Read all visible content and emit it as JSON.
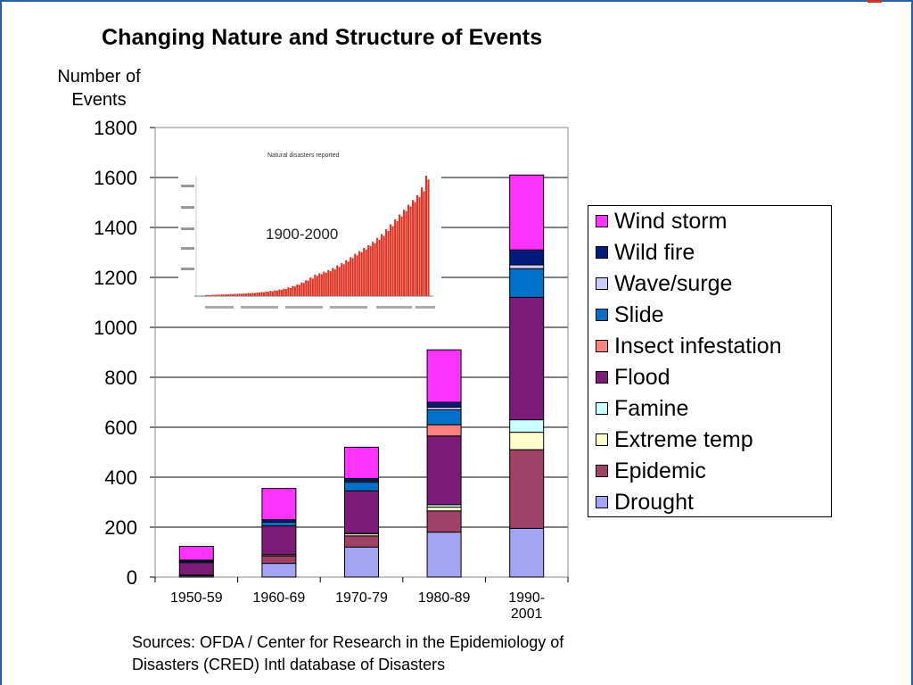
{
  "title": "Changing Nature and Structure of Events",
  "y_axis_label": [
    "Number of",
    "Events"
  ],
  "sources": [
    "Sources: OFDA / Center for Research in the Epidemiology of",
    "Disasters (CRED) Intl database of Disasters"
  ],
  "inset": {
    "title": "Natural disasters reported",
    "period_label": "1900-2000",
    "trend": [
      5,
      6,
      5,
      7,
      6,
      8,
      7,
      9,
      8,
      10,
      9,
      11,
      10,
      12,
      11,
      13,
      12,
      14,
      13,
      16,
      15,
      17,
      16,
      19,
      18,
      21,
      20,
      24,
      22,
      27,
      25,
      30,
      28,
      34,
      32,
      38,
      36,
      45,
      42,
      52,
      50,
      60,
      58,
      70,
      68,
      82,
      80,
      96,
      90,
      110,
      104,
      118,
      112,
      126,
      120,
      134,
      128,
      145,
      138,
      158,
      150,
      170,
      164,
      185,
      178,
      200,
      195,
      218,
      210,
      232,
      226,
      248,
      240,
      262,
      258,
      280,
      272,
      300,
      290,
      320,
      310,
      345,
      335,
      370,
      360,
      395,
      386,
      420,
      410,
      445,
      438,
      470,
      462,
      495,
      485,
      520,
      510,
      560,
      540,
      620,
      600
    ]
  },
  "chart_data": {
    "type": "bar",
    "stacked": true,
    "title": "Changing Nature and Structure of Events",
    "ylabel": "Number of Events",
    "ylim": [
      0,
      1800
    ],
    "yticks": [
      0,
      200,
      400,
      600,
      800,
      1000,
      1200,
      1400,
      1600,
      1800
    ],
    "categories": [
      "1950-59",
      "1960-69",
      "1970-79",
      "1980-89",
      "1990-2001"
    ],
    "category_labels": [
      [
        "1950-59"
      ],
      [
        "1960-69"
      ],
      [
        "1970-79"
      ],
      [
        "1980-89"
      ],
      [
        "1990-",
        "2001"
      ]
    ],
    "series": [
      {
        "name": "Drought",
        "color": "#a4a4f4",
        "values": [
          5,
          55,
          120,
          180,
          195
        ]
      },
      {
        "name": "Epidemic",
        "color": "#a04268",
        "values": [
          3,
          30,
          45,
          85,
          315
        ]
      },
      {
        "name": "Extreme temp",
        "color": "#ffffcc",
        "values": [
          0,
          5,
          8,
          15,
          70
        ]
      },
      {
        "name": "Famine",
        "color": "#ccffff",
        "values": [
          0,
          0,
          2,
          10,
          50
        ]
      },
      {
        "name": "Flood",
        "color": "#7c1c78",
        "values": [
          50,
          115,
          170,
          275,
          490
        ]
      },
      {
        "name": "Insect infestation",
        "color": "#ff8080",
        "values": [
          0,
          0,
          0,
          45,
          0
        ]
      },
      {
        "name": "Slide",
        "color": "#0070c8",
        "values": [
          5,
          15,
          35,
          60,
          115
        ]
      },
      {
        "name": "Wave/surge",
        "color": "#ccccff",
        "values": [
          0,
          0,
          5,
          10,
          15
        ]
      },
      {
        "name": "Wild fire",
        "color": "#001a80",
        "values": [
          5,
          10,
          10,
          20,
          60
        ]
      },
      {
        "name": "Wind storm",
        "color": "#ff33ff",
        "values": [
          55,
          125,
          125,
          210,
          300
        ]
      }
    ],
    "legend_position": "right",
    "gridlines": true
  }
}
